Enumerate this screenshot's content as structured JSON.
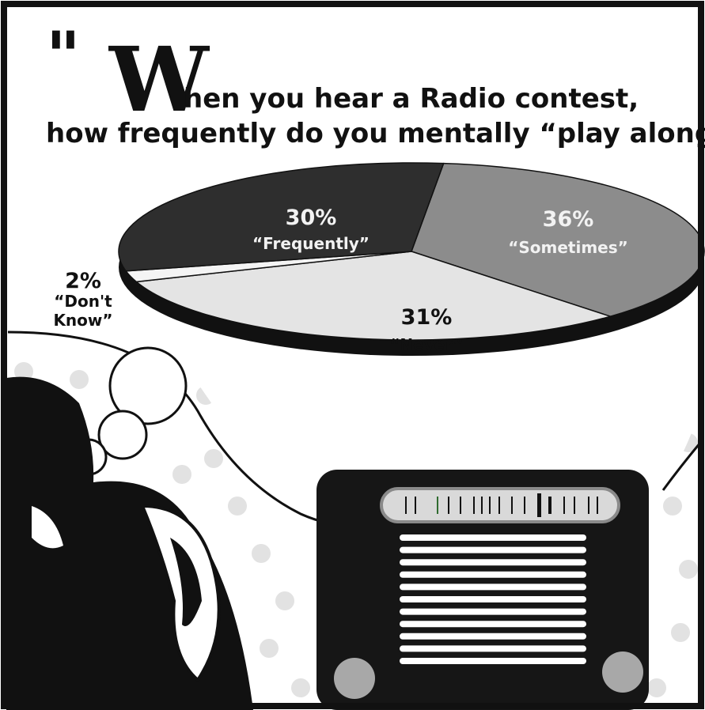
{
  "title_line1_initial": "W",
  "title_line1_rest": "hen you hear a Radio contest,",
  "title_line2": "how frequently do you mentally “play along”?",
  "chart_data": {
    "type": "pie",
    "title": "When you hear a Radio contest, how frequently do you mentally “play along”?",
    "slices": [
      {
        "label": "“Sometimes”",
        "value": 36,
        "value_text": "36%",
        "color": "#8c8c8c"
      },
      {
        "label": "“Never”",
        "value": 31,
        "value_text": "31%",
        "color": "#e4e4e4"
      },
      {
        "label": "“Don't Know”",
        "value": 2,
        "value_text": "2%",
        "color": "#f4f4f4"
      },
      {
        "label": "“Frequently”",
        "value": 30,
        "value_text": "30%",
        "color": "#2e2e2e"
      }
    ]
  },
  "colors": {
    "border": "#111111",
    "pie_edge": "#111111",
    "dots": "#e2e2e2",
    "radio_body": "#161616",
    "radio_dial": "#d9d9d9",
    "radio_knob": "#a8a8a8"
  }
}
